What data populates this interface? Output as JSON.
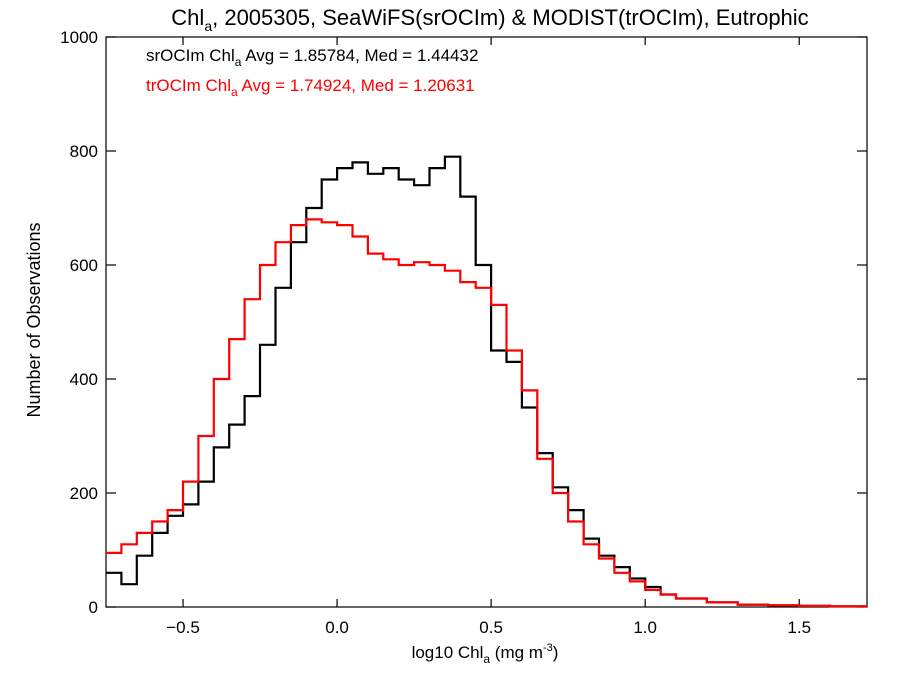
{
  "title": {
    "main": "Chl",
    "sub": "a",
    "rest": ", 2005305, SeaWiFS(srOCIm) & MODIST(trOCIm), Eutrophic"
  },
  "xlabel": {
    "main": "log10 Chl",
    "sub": "a",
    "rest": " (mg m",
    "sup": "-3",
    "close": ")"
  },
  "ylabel": "Number of Observations",
  "annotations": [
    {
      "pre": "srOCIm Chl",
      "sub": "a",
      "post": " Avg = 1.85784, Med = 1.44432",
      "color": "#000000"
    },
    {
      "pre": "trOCIm Chl",
      "sub": "a",
      "post": " Avg = 1.74924, Med = 1.20631",
      "color": "#ff0000"
    }
  ],
  "chart_data": {
    "type": "line",
    "step": true,
    "title": "Chla, 2005305, SeaWiFS(srOCIm) & MODIST(trOCIm), Eutrophic",
    "xlabel": "log10 Chla (mg m-3)",
    "ylabel": "Number of Observations",
    "xlim": [
      -0.75,
      1.72
    ],
    "ylim": [
      0,
      1000
    ],
    "xticks": [
      -0.5,
      0.0,
      0.5,
      1.0,
      1.5
    ],
    "xtick_labels": [
      "−0.5",
      "0.0",
      "0.5",
      "1.0",
      "1.5"
    ],
    "yticks": [
      0,
      200,
      400,
      600,
      800,
      1000
    ],
    "ytick_labels": [
      "0",
      "200",
      "400",
      "600",
      "800",
      "1000"
    ],
    "grid": false,
    "series": [
      {
        "name": "srOCIm",
        "color": "#000000",
        "x": [
          -0.75,
          -0.7,
          -0.65,
          -0.6,
          -0.55,
          -0.5,
          -0.45,
          -0.4,
          -0.35,
          -0.3,
          -0.25,
          -0.2,
          -0.15,
          -0.1,
          -0.05,
          0.0,
          0.05,
          0.1,
          0.15,
          0.2,
          0.25,
          0.3,
          0.35,
          0.4,
          0.45,
          0.5,
          0.55,
          0.6,
          0.65,
          0.7,
          0.75,
          0.8,
          0.85,
          0.9,
          0.95,
          1.0,
          1.05,
          1.1,
          1.2,
          1.3,
          1.4,
          1.5,
          1.6,
          1.72
        ],
        "y": [
          60,
          40,
          90,
          130,
          160,
          180,
          220,
          280,
          320,
          370,
          460,
          560,
          640,
          700,
          750,
          770,
          780,
          760,
          770,
          750,
          740,
          770,
          790,
          720,
          600,
          450,
          430,
          350,
          270,
          210,
          170,
          120,
          90,
          70,
          50,
          35,
          22,
          15,
          8,
          4,
          3,
          2,
          1,
          1
        ]
      },
      {
        "name": "trOCIm",
        "color": "#ff0000",
        "x": [
          -0.75,
          -0.7,
          -0.65,
          -0.6,
          -0.55,
          -0.5,
          -0.45,
          -0.4,
          -0.35,
          -0.3,
          -0.25,
          -0.2,
          -0.15,
          -0.1,
          -0.05,
          0.0,
          0.05,
          0.1,
          0.15,
          0.2,
          0.25,
          0.3,
          0.35,
          0.4,
          0.45,
          0.5,
          0.55,
          0.6,
          0.65,
          0.7,
          0.75,
          0.8,
          0.85,
          0.9,
          0.95,
          1.0,
          1.05,
          1.1,
          1.2,
          1.3,
          1.4,
          1.5,
          1.6,
          1.72
        ],
        "y": [
          95,
          110,
          130,
          150,
          170,
          220,
          300,
          400,
          470,
          540,
          600,
          640,
          670,
          680,
          675,
          670,
          650,
          620,
          610,
          600,
          605,
          600,
          590,
          570,
          560,
          530,
          450,
          380,
          260,
          200,
          150,
          110,
          85,
          60,
          45,
          30,
          22,
          15,
          8,
          4,
          3,
          2,
          1,
          1
        ]
      }
    ]
  }
}
